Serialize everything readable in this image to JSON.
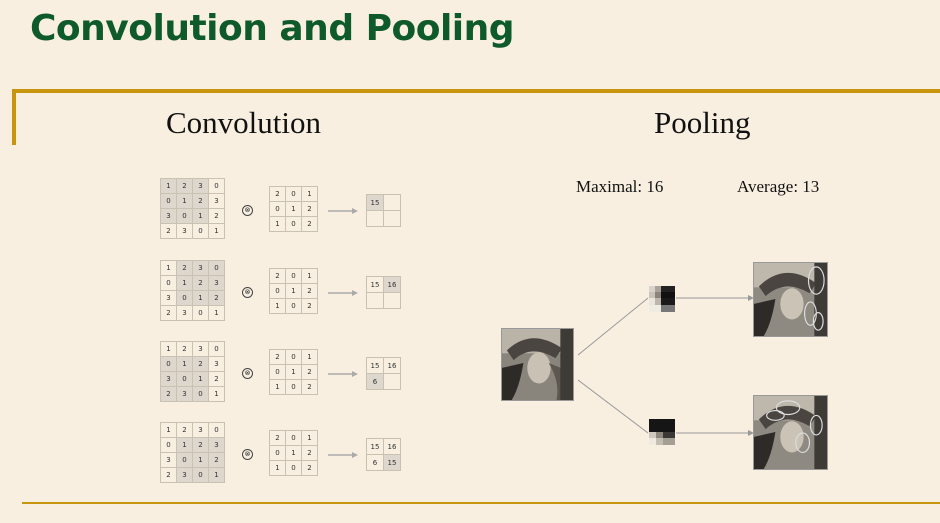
{
  "slide": {
    "title": "Convolution and Pooling",
    "accent_color": "#c8950f",
    "title_color": "#0f5a2a"
  },
  "convolution": {
    "heading": "Convolution",
    "operator_symbol": "⊗",
    "steps": [
      {
        "input": [
          [
            "1",
            "2",
            "3",
            "0"
          ],
          [
            "0",
            "1",
            "2",
            "3"
          ],
          [
            "3",
            "0",
            "1",
            "2"
          ],
          [
            "2",
            "3",
            "0",
            "1"
          ]
        ],
        "kernel": [
          [
            "2",
            "0",
            "1"
          ],
          [
            "0",
            "1",
            "2"
          ],
          [
            "1",
            "0",
            "2"
          ]
        ],
        "output": [
          [
            "15",
            ""
          ],
          [
            "",
            ""
          ]
        ]
      },
      {
        "input": [
          [
            "1",
            "2",
            "3",
            "0"
          ],
          [
            "0",
            "1",
            "2",
            "3"
          ],
          [
            "3",
            "0",
            "1",
            "2"
          ],
          [
            "2",
            "3",
            "0",
            "1"
          ]
        ],
        "kernel": [
          [
            "2",
            "0",
            "1"
          ],
          [
            "0",
            "1",
            "2"
          ],
          [
            "1",
            "0",
            "2"
          ]
        ],
        "output": [
          [
            "15",
            "16"
          ],
          [
            "",
            ""
          ]
        ]
      },
      {
        "input": [
          [
            "1",
            "2",
            "3",
            "0"
          ],
          [
            "0",
            "1",
            "2",
            "3"
          ],
          [
            "3",
            "0",
            "1",
            "2"
          ],
          [
            "2",
            "3",
            "0",
            "1"
          ]
        ],
        "kernel": [
          [
            "2",
            "0",
            "1"
          ],
          [
            "0",
            "1",
            "2"
          ],
          [
            "1",
            "0",
            "2"
          ]
        ],
        "output": [
          [
            "15",
            "16"
          ],
          [
            "6",
            ""
          ]
        ]
      },
      {
        "input": [
          [
            "1",
            "2",
            "3",
            "0"
          ],
          [
            "0",
            "1",
            "2",
            "3"
          ],
          [
            "3",
            "0",
            "1",
            "2"
          ],
          [
            "2",
            "3",
            "0",
            "1"
          ]
        ],
        "kernel": [
          [
            "2",
            "0",
            "1"
          ],
          [
            "0",
            "1",
            "2"
          ],
          [
            "1",
            "0",
            "2"
          ]
        ],
        "output": [
          [
            "15",
            "16"
          ],
          [
            "6",
            "15"
          ]
        ]
      }
    ]
  },
  "pooling": {
    "heading": "Pooling",
    "maximal_label": "Maximal: 16",
    "average_label": "Average: 13"
  }
}
